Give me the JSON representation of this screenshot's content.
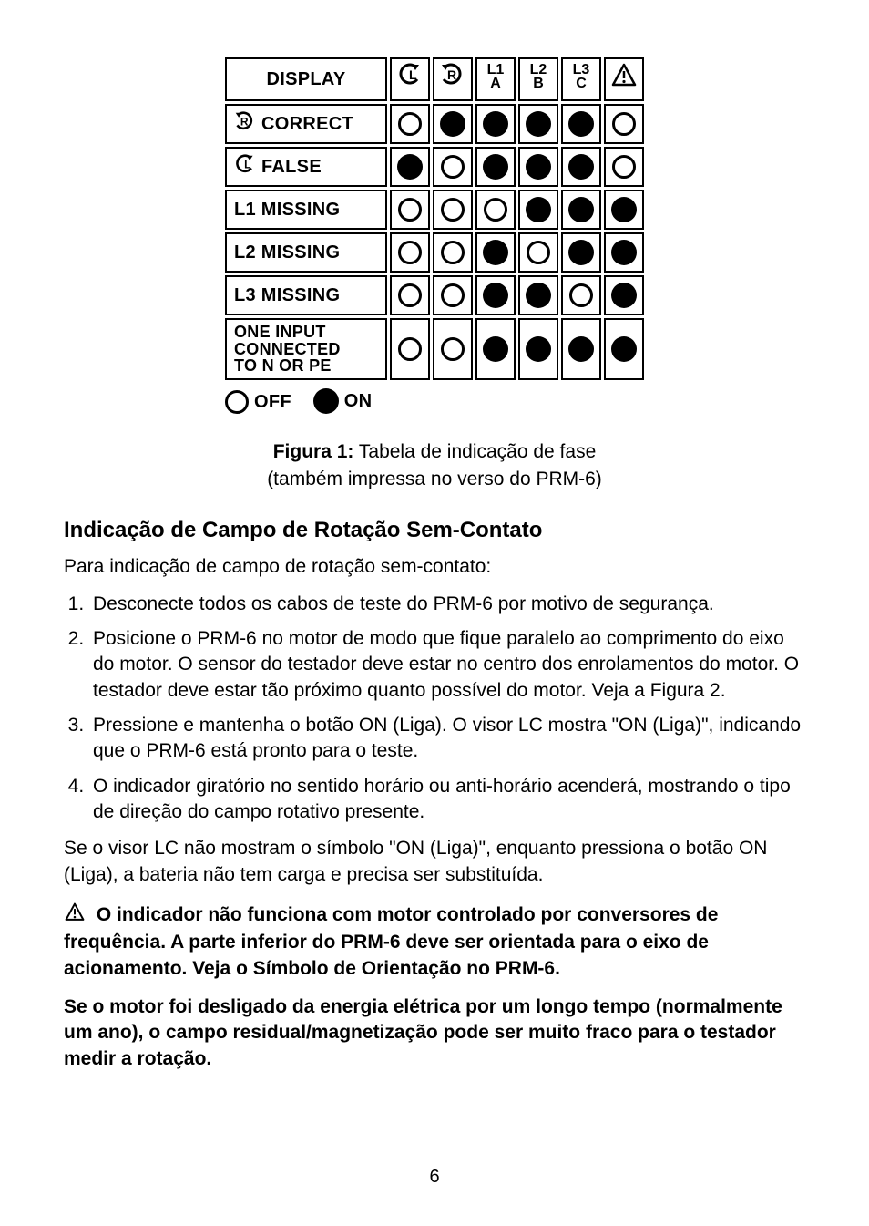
{
  "table": {
    "headers": {
      "display": "DISPLAY",
      "col_l_icon": "ccw-arrow-L",
      "col_r_icon": "cw-arrow-R",
      "l1": "L1",
      "l1_sub": "A",
      "l2": "L2",
      "l2_sub": "B",
      "l3": "L3",
      "l3_sub": "C",
      "warn_icon": "warning-triangle"
    },
    "rows": [
      {
        "label": "CORRECT",
        "icon": "cw-arrow-R",
        "cells": [
          "off",
          "on",
          "on",
          "on",
          "on",
          "off"
        ]
      },
      {
        "label": "FALSE",
        "icon": "ccw-arrow-L",
        "cells": [
          "on",
          "off",
          "on",
          "on",
          "on",
          "off"
        ]
      },
      {
        "label": "L1 MISSING",
        "icon": null,
        "cells": [
          "off",
          "off",
          "off",
          "on",
          "on",
          "on"
        ]
      },
      {
        "label": "L2 MISSING",
        "icon": null,
        "cells": [
          "off",
          "off",
          "on",
          "off",
          "on",
          "on"
        ]
      },
      {
        "label": "L3 MISSING",
        "icon": null,
        "cells": [
          "off",
          "off",
          "on",
          "on",
          "off",
          "on"
        ]
      },
      {
        "label": "ONE INPUT\nCONNECTED\nTO N OR PE",
        "icon": null,
        "multi": true,
        "cells": [
          "off",
          "off",
          "on",
          "on",
          "on",
          "on"
        ]
      }
    ],
    "legend": {
      "off": "OFF",
      "on": "ON"
    }
  },
  "caption": {
    "label": "Figura 1:",
    "line1": "Tabela de indicação de fase",
    "line2": "(também impressa no verso do PRM-6)"
  },
  "section_title": "Indicação de Campo de Rotação Sem-Contato",
  "intro": "Para indicação de campo de rotação sem-contato:",
  "steps": [
    "Desconecte todos os cabos de teste do PRM-6 por motivo de segurança.",
    "Posicione o PRM-6 no motor de modo que fique paralelo ao comprimento do eixo do motor. O sensor do testador deve estar no centro dos enrolamentos do motor. O testador deve estar tão próximo quanto possível do motor. Veja a Figura 2.",
    "Pressione e mantenha o botão ON (Liga). O visor LC mostra \"ON (Liga)\", indicando que o PRM-6 está pronto para o teste.",
    "O indicador giratório no sentido horário ou anti-horário acenderá, mostrando o tipo de direção do campo rotativo presente."
  ],
  "after_steps": "Se o visor LC não mostram o símbolo \"ON (Liga)\", enquanto pressiona o botão ON (Liga), a bateria não tem carga e precisa ser substituída.",
  "warning": "O indicador não funciona com motor controlado por conversores de frequência. A parte inferior do PRM-6 deve ser orientada para o eixo de acionamento. Veja o Símbolo de Orientação no PRM-6.",
  "bold_note": "Se o motor foi desligado da energia elétrica por um longo tempo (normalmente um ano), o campo residual/magnetização pode ser muito fraco para o testador medir a rotação.",
  "page_number": "6",
  "colors": {
    "text": "#000000",
    "bg": "#ffffff"
  }
}
